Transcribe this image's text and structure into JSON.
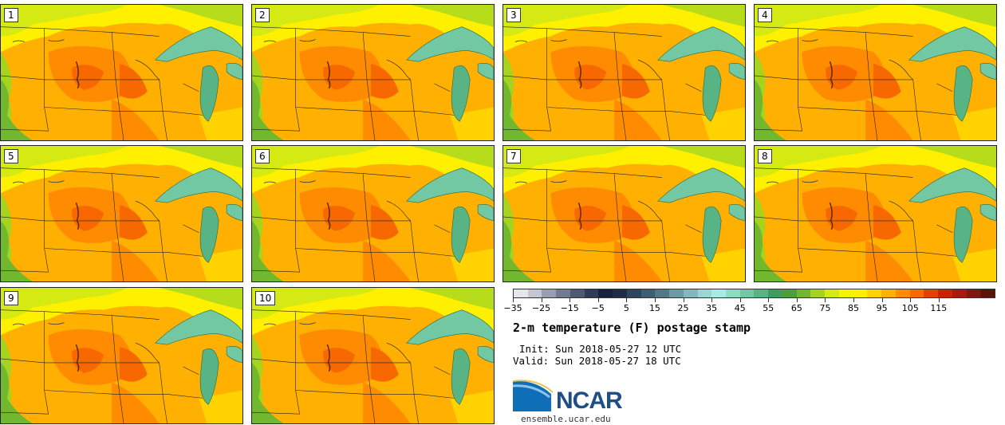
{
  "panels": [
    {
      "label": "1"
    },
    {
      "label": "2"
    },
    {
      "label": "3"
    },
    {
      "label": "4"
    },
    {
      "label": "5"
    },
    {
      "label": "6"
    },
    {
      "label": "7"
    },
    {
      "label": "8"
    },
    {
      "label": "9"
    },
    {
      "label": "10"
    }
  ],
  "colorbar": {
    "colors": [
      "#e6e6ee",
      "#c4c6d4",
      "#9a9eb2",
      "#727a92",
      "#4e5a74",
      "#2e3c58",
      "#16223e",
      "#1e2e48",
      "#2c465e",
      "#3e5e74",
      "#527888",
      "#6a9aa6",
      "#84b8be",
      "#9ad6d2",
      "#a6ece4",
      "#8fdcc4",
      "#72c8a2",
      "#58b484",
      "#3f9c5e",
      "#4a9e3c",
      "#72b82e",
      "#a6d41e",
      "#d4ea12",
      "#f4f600",
      "#fff000",
      "#ffd200",
      "#ffb000",
      "#ff8c00",
      "#f86800",
      "#e44000",
      "#c82400",
      "#a81a10",
      "#7e1810",
      "#5a1408"
    ],
    "tick_labels": [
      "−35",
      "−25",
      "−15",
      "−5",
      "5",
      "15",
      "25",
      "35",
      "45",
      "55",
      "65",
      "75",
      "85",
      "95",
      "105",
      "115"
    ]
  },
  "title": "2-m temperature (F) postage stamp",
  "init": "Init: Sun 2018-05-27 12 UTC",
  "valid": "Valid: Sun 2018-05-27 18 UTC",
  "logo": {
    "text": "NCAR",
    "url": "ensemble.ucar.edu"
  }
}
